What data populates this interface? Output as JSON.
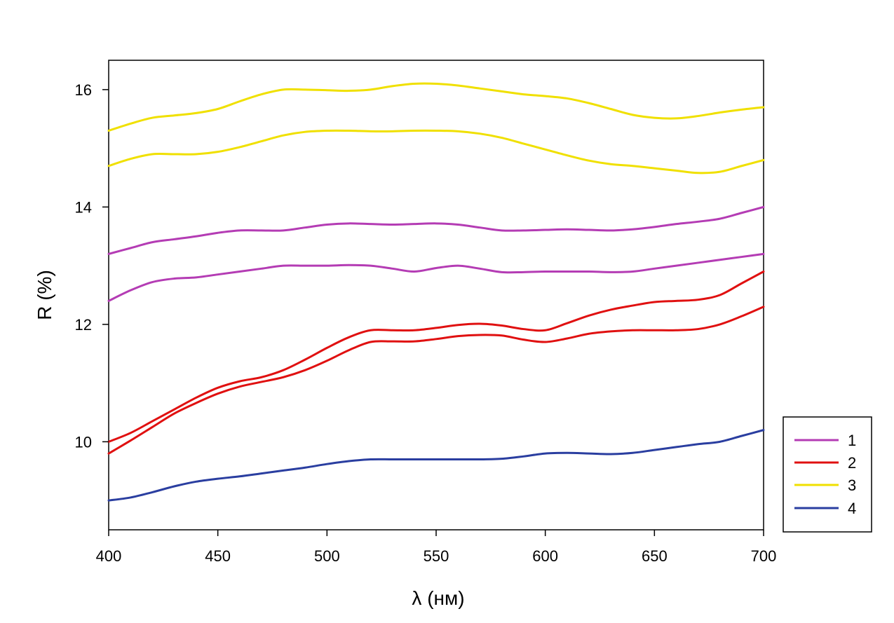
{
  "chart_data": {
    "type": "line",
    "xlabel": "λ (нм)",
    "ylabel": "R (%)",
    "xlim": [
      400,
      700
    ],
    "ylim": [
      8.5,
      16.5
    ],
    "xticks": [
      400,
      450,
      500,
      550,
      600,
      650,
      700
    ],
    "xtick_labels": [
      "400",
      "450",
      "500",
      "550",
      "600",
      "650",
      "700"
    ],
    "yticks": [
      10,
      12,
      14,
      16
    ],
    "ytick_labels": [
      "10",
      "12",
      "14",
      "16"
    ],
    "grid": false,
    "legend_position": "bottom-right, outside plot",
    "legend_labels": [
      "1",
      "2",
      "3",
      "4"
    ],
    "colors": {
      "1": "#b43cb4",
      "2": "#e01010",
      "3": "#f0e000",
      "4": "#2a3ea0"
    },
    "series": [
      {
        "name": "1",
        "x": [
          400,
          410,
          420,
          430,
          440,
          450,
          460,
          470,
          480,
          490,
          500,
          510,
          520,
          530,
          540,
          550,
          560,
          570,
          580,
          590,
          600,
          610,
          620,
          630,
          640,
          650,
          660,
          670,
          680,
          690,
          700
        ],
        "values": [
          13.2,
          13.3,
          13.4,
          13.45,
          13.5,
          13.56,
          13.6,
          13.6,
          13.6,
          13.65,
          13.7,
          13.72,
          13.71,
          13.7,
          13.71,
          13.72,
          13.7,
          13.65,
          13.6,
          13.6,
          13.61,
          13.62,
          13.61,
          13.6,
          13.62,
          13.66,
          13.71,
          13.75,
          13.8,
          13.9,
          14.0
        ]
      },
      {
        "name": "1",
        "x": [
          400,
          410,
          420,
          430,
          440,
          450,
          460,
          470,
          480,
          490,
          500,
          510,
          520,
          530,
          540,
          550,
          560,
          570,
          580,
          590,
          600,
          610,
          620,
          630,
          640,
          650,
          660,
          670,
          680,
          690,
          700
        ],
        "values": [
          12.4,
          12.58,
          12.72,
          12.78,
          12.8,
          12.85,
          12.9,
          12.95,
          13.0,
          13.0,
          13.0,
          13.01,
          13.0,
          12.95,
          12.9,
          12.96,
          13.0,
          12.95,
          12.89,
          12.89,
          12.9,
          12.9,
          12.9,
          12.89,
          12.9,
          12.95,
          13.0,
          13.05,
          13.1,
          13.15,
          13.2
        ]
      },
      {
        "name": "2",
        "x": [
          400,
          410,
          420,
          430,
          440,
          450,
          460,
          470,
          480,
          490,
          500,
          510,
          520,
          530,
          540,
          550,
          560,
          570,
          580,
          590,
          600,
          610,
          620,
          630,
          640,
          650,
          660,
          670,
          680,
          690,
          700
        ],
        "values": [
          10.0,
          10.15,
          10.35,
          10.55,
          10.75,
          10.92,
          11.03,
          11.1,
          11.22,
          11.4,
          11.6,
          11.78,
          11.9,
          11.9,
          11.9,
          11.94,
          11.99,
          12.01,
          11.98,
          11.92,
          11.9,
          12.02,
          12.15,
          12.25,
          12.32,
          12.38,
          12.4,
          12.42,
          12.5,
          12.7,
          12.9
        ]
      },
      {
        "name": "2",
        "x": [
          400,
          410,
          420,
          430,
          440,
          450,
          460,
          470,
          480,
          490,
          500,
          510,
          520,
          530,
          540,
          550,
          560,
          570,
          580,
          590,
          600,
          610,
          620,
          630,
          640,
          650,
          660,
          670,
          680,
          690,
          700
        ],
        "values": [
          9.8,
          10.02,
          10.25,
          10.48,
          10.66,
          10.82,
          10.94,
          11.02,
          11.1,
          11.22,
          11.38,
          11.56,
          11.7,
          11.71,
          11.71,
          11.75,
          11.8,
          11.82,
          11.81,
          11.74,
          11.7,
          11.76,
          11.84,
          11.88,
          11.9,
          11.9,
          11.9,
          11.92,
          12.0,
          12.14,
          12.3
        ]
      },
      {
        "name": "3",
        "x": [
          400,
          410,
          420,
          430,
          440,
          450,
          460,
          470,
          480,
          490,
          500,
          510,
          520,
          530,
          540,
          550,
          560,
          570,
          580,
          590,
          600,
          610,
          620,
          630,
          640,
          650,
          660,
          670,
          680,
          690,
          700
        ],
        "values": [
          15.3,
          15.42,
          15.52,
          15.56,
          15.6,
          15.67,
          15.8,
          15.92,
          16.0,
          16.0,
          15.99,
          15.98,
          16.0,
          16.06,
          16.1,
          16.1,
          16.07,
          16.02,
          15.97,
          15.92,
          15.89,
          15.85,
          15.77,
          15.67,
          15.57,
          15.52,
          15.51,
          15.55,
          15.61,
          15.66,
          15.7
        ]
      },
      {
        "name": "3",
        "x": [
          400,
          410,
          420,
          430,
          440,
          450,
          460,
          470,
          480,
          490,
          500,
          510,
          520,
          530,
          540,
          550,
          560,
          570,
          580,
          590,
          600,
          610,
          620,
          630,
          640,
          650,
          660,
          670,
          680,
          690,
          700
        ],
        "values": [
          14.7,
          14.82,
          14.9,
          14.9,
          14.9,
          14.94,
          15.02,
          15.12,
          15.22,
          15.28,
          15.3,
          15.3,
          15.29,
          15.29,
          15.3,
          15.3,
          15.29,
          15.25,
          15.18,
          15.08,
          14.98,
          14.88,
          14.79,
          14.73,
          14.7,
          14.66,
          14.62,
          14.58,
          14.6,
          14.7,
          14.8
        ]
      },
      {
        "name": "4",
        "x": [
          400,
          410,
          420,
          430,
          440,
          450,
          460,
          470,
          480,
          490,
          500,
          510,
          520,
          530,
          540,
          550,
          560,
          570,
          580,
          590,
          600,
          610,
          620,
          630,
          640,
          650,
          660,
          670,
          680,
          690,
          700
        ],
        "values": [
          9.0,
          9.05,
          9.14,
          9.24,
          9.32,
          9.37,
          9.41,
          9.46,
          9.51,
          9.56,
          9.62,
          9.67,
          9.7,
          9.7,
          9.7,
          9.7,
          9.7,
          9.7,
          9.71,
          9.75,
          9.8,
          9.81,
          9.8,
          9.79,
          9.81,
          9.86,
          9.91,
          9.96,
          10.0,
          10.1,
          10.2
        ]
      }
    ]
  }
}
